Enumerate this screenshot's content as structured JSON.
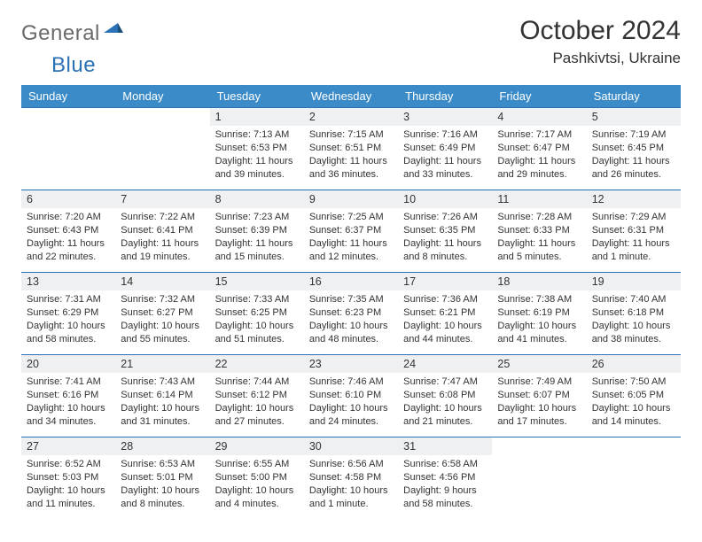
{
  "brand": {
    "a": "General",
    "b": "Blue"
  },
  "title": "October 2024",
  "location": "Pashkivtsi, Ukraine",
  "colors": {
    "header_bg": "#3b8bc8",
    "border": "#2a72b5",
    "daynum_bg": "#eef0f2",
    "text": "#333333",
    "logo_gray": "#6a6a6a",
    "logo_blue": "#2a72b5"
  },
  "dayNames": [
    "Sunday",
    "Monday",
    "Tuesday",
    "Wednesday",
    "Thursday",
    "Friday",
    "Saturday"
  ],
  "weeks": [
    [
      null,
      null,
      {
        "n": "1",
        "sr": "7:13 AM",
        "ss": "6:53 PM",
        "dl": "11 hours and 39 minutes."
      },
      {
        "n": "2",
        "sr": "7:15 AM",
        "ss": "6:51 PM",
        "dl": "11 hours and 36 minutes."
      },
      {
        "n": "3",
        "sr": "7:16 AM",
        "ss": "6:49 PM",
        "dl": "11 hours and 33 minutes."
      },
      {
        "n": "4",
        "sr": "7:17 AM",
        "ss": "6:47 PM",
        "dl": "11 hours and 29 minutes."
      },
      {
        "n": "5",
        "sr": "7:19 AM",
        "ss": "6:45 PM",
        "dl": "11 hours and 26 minutes."
      }
    ],
    [
      {
        "n": "6",
        "sr": "7:20 AM",
        "ss": "6:43 PM",
        "dl": "11 hours and 22 minutes."
      },
      {
        "n": "7",
        "sr": "7:22 AM",
        "ss": "6:41 PM",
        "dl": "11 hours and 19 minutes."
      },
      {
        "n": "8",
        "sr": "7:23 AM",
        "ss": "6:39 PM",
        "dl": "11 hours and 15 minutes."
      },
      {
        "n": "9",
        "sr": "7:25 AM",
        "ss": "6:37 PM",
        "dl": "11 hours and 12 minutes."
      },
      {
        "n": "10",
        "sr": "7:26 AM",
        "ss": "6:35 PM",
        "dl": "11 hours and 8 minutes."
      },
      {
        "n": "11",
        "sr": "7:28 AM",
        "ss": "6:33 PM",
        "dl": "11 hours and 5 minutes."
      },
      {
        "n": "12",
        "sr": "7:29 AM",
        "ss": "6:31 PM",
        "dl": "11 hours and 1 minute."
      }
    ],
    [
      {
        "n": "13",
        "sr": "7:31 AM",
        "ss": "6:29 PM",
        "dl": "10 hours and 58 minutes."
      },
      {
        "n": "14",
        "sr": "7:32 AM",
        "ss": "6:27 PM",
        "dl": "10 hours and 55 minutes."
      },
      {
        "n": "15",
        "sr": "7:33 AM",
        "ss": "6:25 PM",
        "dl": "10 hours and 51 minutes."
      },
      {
        "n": "16",
        "sr": "7:35 AM",
        "ss": "6:23 PM",
        "dl": "10 hours and 48 minutes."
      },
      {
        "n": "17",
        "sr": "7:36 AM",
        "ss": "6:21 PM",
        "dl": "10 hours and 44 minutes."
      },
      {
        "n": "18",
        "sr": "7:38 AM",
        "ss": "6:19 PM",
        "dl": "10 hours and 41 minutes."
      },
      {
        "n": "19",
        "sr": "7:40 AM",
        "ss": "6:18 PM",
        "dl": "10 hours and 38 minutes."
      }
    ],
    [
      {
        "n": "20",
        "sr": "7:41 AM",
        "ss": "6:16 PM",
        "dl": "10 hours and 34 minutes."
      },
      {
        "n": "21",
        "sr": "7:43 AM",
        "ss": "6:14 PM",
        "dl": "10 hours and 31 minutes."
      },
      {
        "n": "22",
        "sr": "7:44 AM",
        "ss": "6:12 PM",
        "dl": "10 hours and 27 minutes."
      },
      {
        "n": "23",
        "sr": "7:46 AM",
        "ss": "6:10 PM",
        "dl": "10 hours and 24 minutes."
      },
      {
        "n": "24",
        "sr": "7:47 AM",
        "ss": "6:08 PM",
        "dl": "10 hours and 21 minutes."
      },
      {
        "n": "25",
        "sr": "7:49 AM",
        "ss": "6:07 PM",
        "dl": "10 hours and 17 minutes."
      },
      {
        "n": "26",
        "sr": "7:50 AM",
        "ss": "6:05 PM",
        "dl": "10 hours and 14 minutes."
      }
    ],
    [
      {
        "n": "27",
        "sr": "6:52 AM",
        "ss": "5:03 PM",
        "dl": "10 hours and 11 minutes."
      },
      {
        "n": "28",
        "sr": "6:53 AM",
        "ss": "5:01 PM",
        "dl": "10 hours and 8 minutes."
      },
      {
        "n": "29",
        "sr": "6:55 AM",
        "ss": "5:00 PM",
        "dl": "10 hours and 4 minutes."
      },
      {
        "n": "30",
        "sr": "6:56 AM",
        "ss": "4:58 PM",
        "dl": "10 hours and 1 minute."
      },
      {
        "n": "31",
        "sr": "6:58 AM",
        "ss": "4:56 PM",
        "dl": "9 hours and 58 minutes."
      },
      null,
      null
    ]
  ],
  "labels": {
    "sunrise": "Sunrise: ",
    "sunset": "Sunset: ",
    "daylight": "Daylight: "
  }
}
